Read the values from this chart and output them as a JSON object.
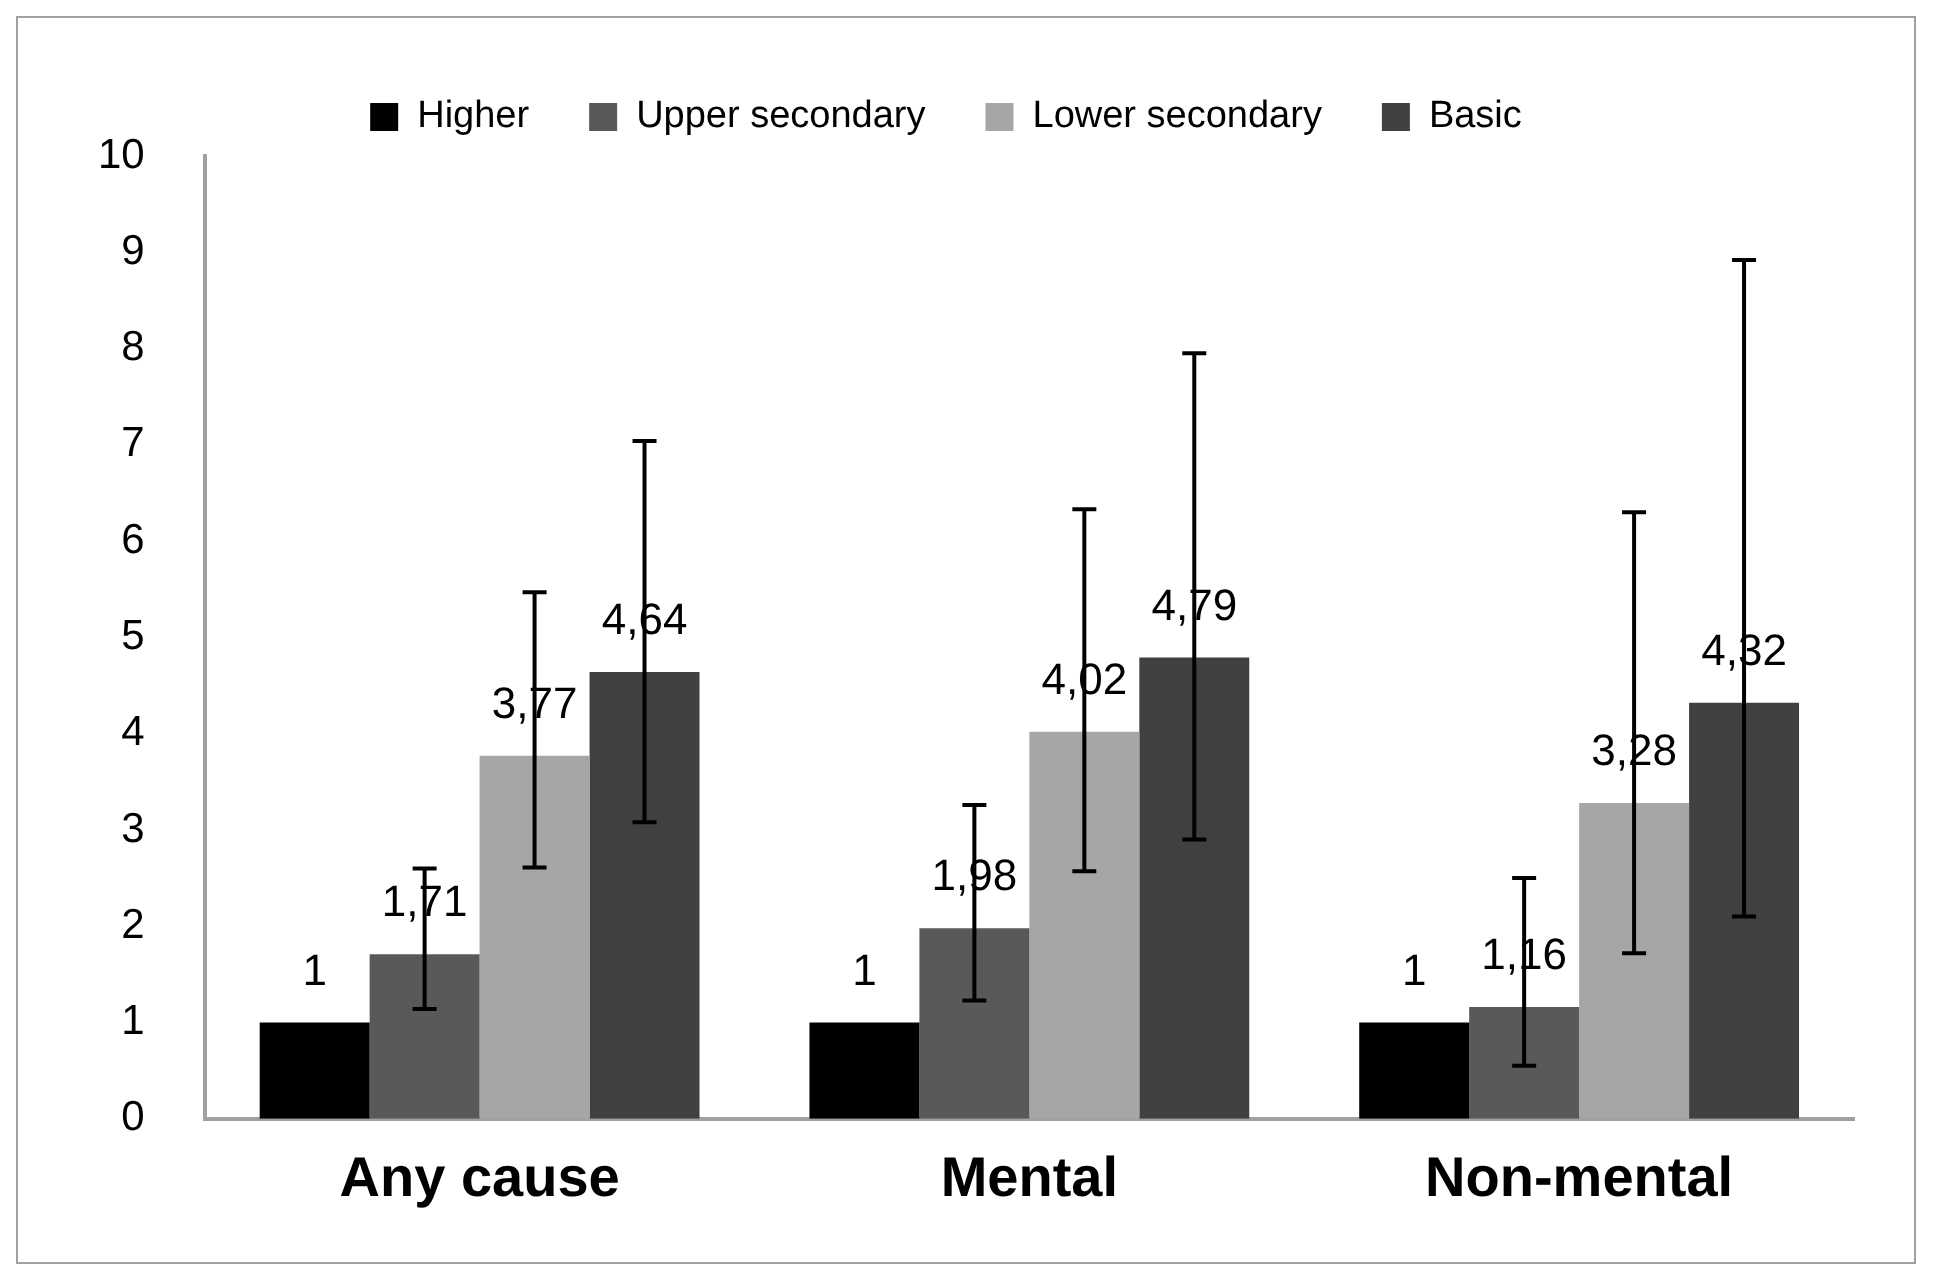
{
  "chart_data": {
    "type": "bar",
    "categories": [
      "Any cause",
      "Mental",
      "Non-mental"
    ],
    "series": [
      {
        "name": "Higher",
        "color": "#000000",
        "values": [
          1,
          1,
          1
        ],
        "value_labels": [
          "1",
          "1",
          "1"
        ],
        "errors": [
          null,
          null,
          null
        ]
      },
      {
        "name": "Upper secondary",
        "color": "#595959",
        "values": [
          1.71,
          1.98,
          1.16
        ],
        "value_labels": [
          "1,71",
          "1,98",
          "1,16"
        ],
        "errors": [
          [
            1.14,
            2.6
          ],
          [
            1.23,
            3.26
          ],
          [
            0.55,
            2.5
          ]
        ]
      },
      {
        "name": "Lower secondary",
        "color": "#a6a6a6",
        "values": [
          3.77,
          4.02,
          3.28
        ],
        "value_labels": [
          "3,77",
          "4,02",
          "3,28"
        ],
        "errors": [
          [
            2.61,
            5.47
          ],
          [
            2.57,
            6.33
          ],
          [
            1.72,
            6.3
          ]
        ]
      },
      {
        "name": "Basic",
        "color": "#404040",
        "values": [
          4.64,
          4.79,
          4.32
        ],
        "value_labels": [
          "4,64",
          "4,79",
          "4,32"
        ],
        "errors": [
          [
            3.08,
            7.04
          ],
          [
            2.9,
            7.95
          ],
          [
            2.1,
            8.92
          ]
        ]
      }
    ],
    "ylim": [
      0,
      10
    ],
    "yticks": [
      0,
      1,
      2,
      3,
      4,
      5,
      6,
      7,
      8,
      9,
      10
    ],
    "grid": false,
    "legend": "top"
  }
}
